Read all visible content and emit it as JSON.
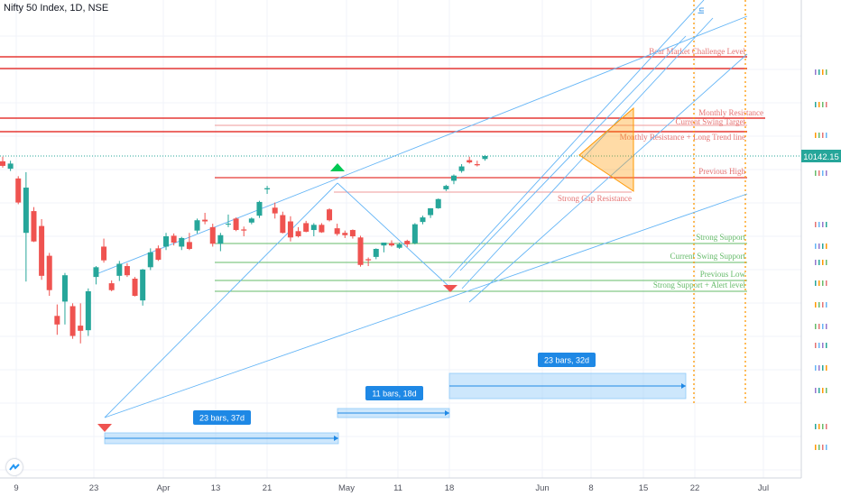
{
  "header": {
    "symbol": "Nifty 50 Index",
    "interval": "1D",
    "exchange": "NSE",
    "separator": ", "
  },
  "colors": {
    "up": "#26a69a",
    "down": "#ef5350",
    "level_red": "#e53935",
    "level_green": "#66bb6a",
    "channel": "#64b5f6",
    "range_fill": "#bbdefb",
    "range_label_bg": "#1e88e5",
    "price_tag": "#26a69a",
    "orange": "#ff9800"
  },
  "price_axis": {
    "current_price_label": "10142.15"
  },
  "time_axis": {
    "ticks": [
      "9",
      "23",
      "Apr",
      "13",
      "21",
      "May",
      "11",
      "18",
      "Jun",
      "8",
      "15",
      "22",
      "Jul"
    ]
  },
  "levels": {
    "bear_market": "Bear Market Challenge Level",
    "monthly_resistance": "Monthly Resistance",
    "current_swing_target": "Current Swing Target",
    "monthly_long_trend": "Monthly Resistance + Long Trend line",
    "previous_high": "Previous High",
    "strong_gap_resistance": "Strong Gap Resistance",
    "strong_support": "Strong Support",
    "current_swing_support": "Current Swing Support",
    "previous_low": "Previous Low",
    "strong_support_alert": "Strong Support + Alert level"
  },
  "ranges": [
    {
      "label": "23 bars, 37d"
    },
    {
      "label": "11 bars, 18d"
    },
    {
      "label": "23 bars, 32d"
    }
  ],
  "edge_label": "In",
  "chart_data": {
    "type": "candlestick",
    "title": "Nifty 50 Index, 1D, NSE",
    "last_price": 10142.15,
    "candles": [
      {
        "o": 10050,
        "h": 10130,
        "l": 9940,
        "c": 9970
      },
      {
        "o": 9920,
        "h": 10060,
        "l": 9880,
        "c": 10010
      },
      {
        "o": 9750,
        "h": 9790,
        "l": 9300,
        "c": 9330
      },
      {
        "o": 8800,
        "h": 9860,
        "l": 7950,
        "c": 9590
      },
      {
        "o": 9180,
        "h": 9250,
        "l": 8640,
        "c": 8650
      },
      {
        "o": 8920,
        "h": 9040,
        "l": 7980,
        "c": 8050
      },
      {
        "o": 8400,
        "h": 8450,
        "l": 7700,
        "c": 7800
      },
      {
        "o": 7350,
        "h": 7550,
        "l": 7020,
        "c": 7200
      },
      {
        "o": 7600,
        "h": 8100,
        "l": 7200,
        "c": 8060
      },
      {
        "o": 7520,
        "h": 7570,
        "l": 6950,
        "c": 7000
      },
      {
        "o": 7180,
        "h": 7570,
        "l": 6870,
        "c": 7090
      },
      {
        "o": 7100,
        "h": 7830,
        "l": 7000,
        "c": 7780
      },
      {
        "o": 8030,
        "h": 8220,
        "l": 7900,
        "c": 8200
      },
      {
        "o": 8560,
        "h": 8700,
        "l": 8280,
        "c": 8320
      },
      {
        "o": 7920,
        "h": 7970,
        "l": 7780,
        "c": 7800
      },
      {
        "o": 8050,
        "h": 8310,
        "l": 7960,
        "c": 8260
      },
      {
        "o": 8220,
        "h": 8270,
        "l": 8030,
        "c": 8060
      },
      {
        "o": 8000,
        "h": 8030,
        "l": 7690,
        "c": 7700
      },
      {
        "o": 7620,
        "h": 8170,
        "l": 7530,
        "c": 8160
      },
      {
        "o": 8200,
        "h": 8530,
        "l": 8150,
        "c": 8460
      },
      {
        "o": 8530,
        "h": 8580,
        "l": 8310,
        "c": 8330
      },
      {
        "o": 8560,
        "h": 8800,
        "l": 8500,
        "c": 8740
      },
      {
        "o": 8750,
        "h": 8790,
        "l": 8580,
        "c": 8630
      },
      {
        "o": 8560,
        "h": 8730,
        "l": 8500,
        "c": 8710
      },
      {
        "o": 8640,
        "h": 8800,
        "l": 8500,
        "c": 8520
      },
      {
        "o": 8840,
        "h": 9050,
        "l": 8790,
        "c": 9020
      },
      {
        "o": 9030,
        "h": 9150,
        "l": 8950,
        "c": 9000
      },
      {
        "o": 8900,
        "h": 8960,
        "l": 8560,
        "c": 8610
      },
      {
        "o": 8610,
        "h": 8800,
        "l": 8480,
        "c": 8760
      },
      {
        "o": 8950,
        "h": 9120,
        "l": 8900,
        "c": 8960
      },
      {
        "o": 9050,
        "h": 9070,
        "l": 8830,
        "c": 8850
      },
      {
        "o": 8860,
        "h": 8910,
        "l": 8740,
        "c": 8840
      },
      {
        "o": 8980,
        "h": 9070,
        "l": 8950,
        "c": 9050
      },
      {
        "o": 9100,
        "h": 9360,
        "l": 9060,
        "c": 9340
      },
      {
        "o": 9560,
        "h": 9620,
        "l": 9480,
        "c": 9580
      },
      {
        "o": 9240,
        "h": 9330,
        "l": 9050,
        "c": 9140
      },
      {
        "o": 9110,
        "h": 9170,
        "l": 8790,
        "c": 8800
      },
      {
        "o": 9000,
        "h": 9090,
        "l": 8650,
        "c": 8720
      },
      {
        "o": 8830,
        "h": 8900,
        "l": 8720,
        "c": 8740
      },
      {
        "o": 8970,
        "h": 9010,
        "l": 8810,
        "c": 8820
      },
      {
        "o": 8850,
        "h": 8970,
        "l": 8740,
        "c": 8940
      },
      {
        "o": 8940,
        "h": 8970,
        "l": 8800,
        "c": 8810
      },
      {
        "o": 9210,
        "h": 9230,
        "l": 9000,
        "c": 9020
      },
      {
        "o": 8880,
        "h": 8960,
        "l": 8750,
        "c": 8780
      },
      {
        "o": 8800,
        "h": 8840,
        "l": 8710,
        "c": 8760
      },
      {
        "o": 8850,
        "h": 8860,
        "l": 8700,
        "c": 8740
      },
      {
        "o": 8720,
        "h": 8750,
        "l": 8210,
        "c": 8240
      },
      {
        "o": 8340,
        "h": 8370,
        "l": 8220,
        "c": 8320
      },
      {
        "o": 8380,
        "h": 8530,
        "l": 8340,
        "c": 8520
      },
      {
        "o": 8580,
        "h": 8630,
        "l": 8460,
        "c": 8630
      },
      {
        "o": 8620,
        "h": 8670,
        "l": 8560,
        "c": 8580
      },
      {
        "o": 8540,
        "h": 8630,
        "l": 8520,
        "c": 8600
      },
      {
        "o": 8660,
        "h": 8680,
        "l": 8550,
        "c": 8600
      },
      {
        "o": 8620,
        "h": 8970,
        "l": 8600,
        "c": 8950
      },
      {
        "o": 8990,
        "h": 9100,
        "l": 8950,
        "c": 9070
      },
      {
        "o": 9110,
        "h": 9230,
        "l": 9060,
        "c": 9230
      },
      {
        "o": 9230,
        "h": 9400,
        "l": 9220,
        "c": 9390
      },
      {
        "o": 9560,
        "h": 9640,
        "l": 9530,
        "c": 9620
      },
      {
        "o": 9710,
        "h": 9820,
        "l": 9650,
        "c": 9800
      },
      {
        "o": 9880,
        "h": 10000,
        "l": 9850,
        "c": 9960
      },
      {
        "o": 10070,
        "h": 10130,
        "l": 10010,
        "c": 10030
      },
      {
        "o": 10000,
        "h": 10060,
        "l": 9960,
        "c": 9980
      },
      {
        "o": 10090,
        "h": 10160,
        "l": 10060,
        "c": 10142
      }
    ]
  }
}
